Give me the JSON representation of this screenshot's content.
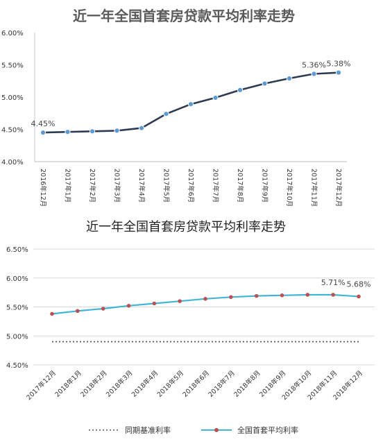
{
  "chart_data": [
    {
      "type": "line",
      "title": "近一年全国首套房贷款平均利率走势",
      "categories": [
        "2016年12月",
        "2017年1月",
        "2017年2月",
        "2017年3月",
        "2017年4月",
        "2017年5月",
        "2017年6月",
        "2017年7月",
        "2017年8月",
        "2017年9月",
        "2017年10月",
        "2017年11月",
        "2017年12月"
      ],
      "series": [
        {
          "values": [
            4.45,
            4.46,
            4.47,
            4.48,
            4.52,
            4.74,
            4.89,
            4.99,
            5.11,
            5.21,
            5.29,
            5.36,
            5.38
          ]
        }
      ],
      "yticks": [
        "4.00%",
        "4.50%",
        "5.00%",
        "5.50%",
        "6.00%"
      ],
      "ylim": [
        4.0,
        6.0
      ],
      "data_labels": [
        {
          "index": 0,
          "text": "4.45%"
        },
        {
          "index": 11,
          "text": "5.36%"
        },
        {
          "index": 12,
          "text": "5.38%"
        }
      ],
      "grid": false,
      "color": "#2f3b55"
    },
    {
      "type": "line",
      "title": "近一年全国首套房贷款平均利率走势",
      "categories": [
        "2017年12月",
        "2018年1月",
        "2018年2月",
        "2018年3月",
        "2018年4月",
        "2018年5月",
        "2018年6月",
        "2018年7月",
        "2018年8月",
        "2018年9月",
        "2018年10月",
        "2018年11月",
        "2018年12月"
      ],
      "series": [
        {
          "name": "全国首套平均利率",
          "style": "line-marker",
          "values": [
            5.38,
            5.43,
            5.47,
            5.52,
            5.56,
            5.6,
            5.64,
            5.67,
            5.69,
            5.7,
            5.71,
            5.71,
            5.68
          ]
        },
        {
          "name": "同期基准利率",
          "style": "dotted",
          "values": [
            4.9,
            4.9,
            4.9,
            4.9,
            4.9,
            4.9,
            4.9,
            4.9,
            4.9,
            4.9,
            4.9,
            4.9,
            4.9
          ]
        }
      ],
      "yticks": [
        "4.50%",
        "5.00%",
        "5.50%",
        "6.00%",
        "6.50%"
      ],
      "ylim": [
        4.5,
        6.5
      ],
      "data_labels": [
        {
          "index": 11,
          "text": "5.71%"
        },
        {
          "index": 12,
          "text": "5.68%"
        }
      ],
      "grid": true,
      "legend": "bottom",
      "colors": {
        "line": "#3fb6d6",
        "marker": "#c0504d",
        "dotted": "#555555"
      }
    }
  ]
}
